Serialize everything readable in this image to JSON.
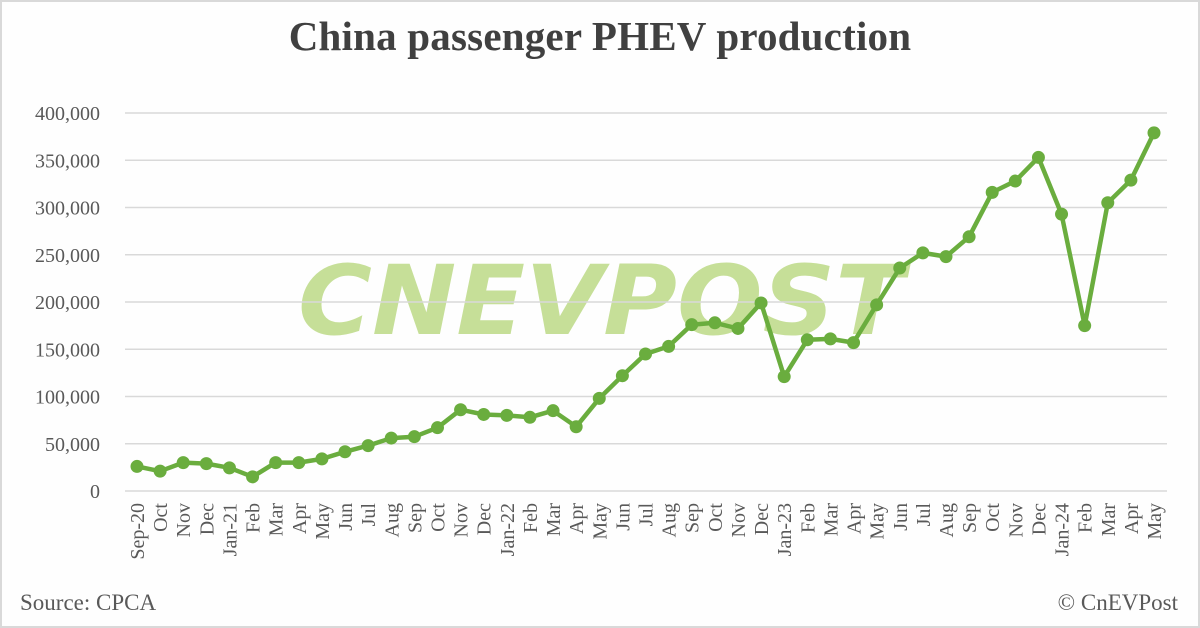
{
  "title": "China passenger PHEV production",
  "footer": {
    "source": "Source: CPCA",
    "copyright": "© CnEVPost"
  },
  "watermark": "CNEVPOST",
  "colors": {
    "line": "#6aad3e",
    "watermark": "#c6df98",
    "grid": "#d9d9d9",
    "text": "#595959",
    "title": "#404040"
  },
  "chart_data": {
    "type": "line",
    "title": "China passenger PHEV production",
    "xlabel": "",
    "ylabel": "",
    "ylim": [
      0,
      400000
    ],
    "yticks": [
      0,
      50000,
      100000,
      150000,
      200000,
      250000,
      300000,
      350000,
      400000
    ],
    "ytick_labels": [
      "0",
      "50,000",
      "100,000",
      "150,000",
      "200,000",
      "250,000",
      "300,000",
      "350,000",
      "400,000"
    ],
    "grid": true,
    "legend": "none",
    "markers": true,
    "categories": [
      "Sep-20",
      "Oct",
      "Nov",
      "Dec",
      "Jan-21",
      "Feb",
      "Mar",
      "Apr",
      "May",
      "Jun",
      "Jul",
      "Aug",
      "Sep",
      "Oct",
      "Nov",
      "Dec",
      "Jan-22",
      "Feb",
      "Mar",
      "Apr",
      "May",
      "Jun",
      "Jul",
      "Aug",
      "Sep",
      "Oct",
      "Nov",
      "Dec",
      "Jan-23",
      "Feb",
      "Mar",
      "Apr",
      "May",
      "Jun",
      "Jul",
      "Aug",
      "Sep",
      "Oct",
      "Nov",
      "Dec",
      "Jan-24",
      "Feb",
      "Mar",
      "Apr",
      "May"
    ],
    "series": [
      {
        "name": "PHEV production",
        "values": [
          26000,
          21000,
          30000,
          29000,
          24500,
          15000,
          30000,
          30000,
          34000,
          41500,
          48000,
          56000,
          57500,
          67000,
          86000,
          81000,
          80000,
          78000,
          85000,
          68000,
          98000,
          122000,
          145000,
          153000,
          176000,
          178000,
          172000,
          199000,
          121000,
          160000,
          161000,
          157000,
          197000,
          236000,
          252000,
          248000,
          269000,
          316000,
          328000,
          353000,
          293000,
          175000,
          305000,
          329000,
          379000
        ]
      }
    ]
  }
}
